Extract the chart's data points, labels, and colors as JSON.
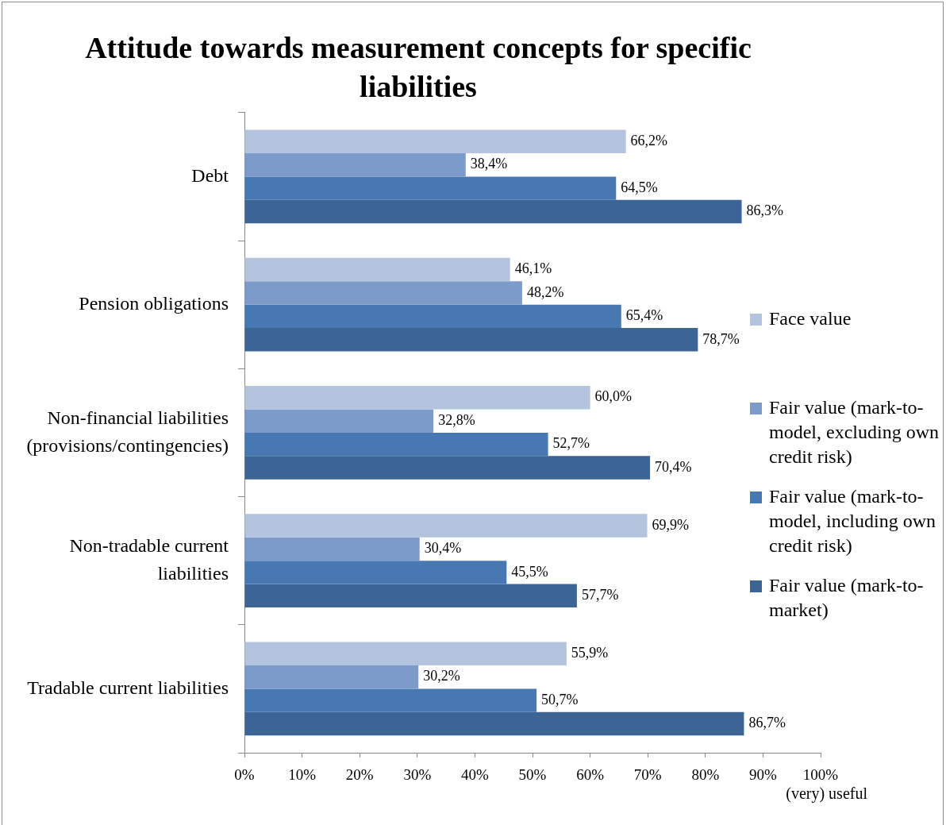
{
  "chart_data": {
    "type": "bar",
    "orientation": "horizontal",
    "title": "Attitude towards measurement concepts for specific liabilities",
    "categories": [
      "Debt",
      "Pension obligations",
      "Non-financial liabilities (provisions/contingencies)",
      "Non-tradable current liabilities",
      "Tradable current liabilities"
    ],
    "series": [
      {
        "name": "Face value",
        "color": "#b4c3de",
        "values": [
          66.2,
          46.1,
          60.0,
          69.9,
          55.9
        ],
        "value_labels": [
          "66,2%",
          "46,1%",
          "60,0%",
          "69,9%",
          "55,9%"
        ]
      },
      {
        "name": "Fair value (mark-to-model, excluding own credit risk)",
        "color": "#7d9bca",
        "values": [
          38.4,
          48.2,
          32.8,
          30.4,
          30.2
        ],
        "value_labels": [
          "38,4%",
          "48,2%",
          "32,8%",
          "30,4%",
          "30,2%"
        ]
      },
      {
        "name": "Fair value (mark-to-model, including own credit risk)",
        "color": "#4778b1",
        "values": [
          64.5,
          65.4,
          52.7,
          45.5,
          50.7
        ],
        "value_labels": [
          "64,5%",
          "65,4%",
          "52,7%",
          "45,5%",
          "50,7%"
        ]
      },
      {
        "name": "Fair value (mark-to-market)",
        "color": "#3c6494",
        "values": [
          86.3,
          78.7,
          70.4,
          57.7,
          86.7
        ],
        "value_labels": [
          "86,3%",
          "78,7%",
          "70,4%",
          "57,7%",
          "86,7%"
        ]
      }
    ],
    "xlabel": "(very) useful",
    "xlim": [
      0,
      100
    ],
    "xticks": [
      {
        "value": 0,
        "label": "0%"
      },
      {
        "value": 10,
        "label": "10%"
      },
      {
        "value": 20,
        "label": "20%"
      },
      {
        "value": 30,
        "label": "30%"
      },
      {
        "value": 40,
        "label": "40%"
      },
      {
        "value": 50,
        "label": "50%"
      },
      {
        "value": 60,
        "label": "60%"
      },
      {
        "value": 70,
        "label": "70%"
      },
      {
        "value": 80,
        "label": "80%"
      },
      {
        "value": 90,
        "label": "90%"
      },
      {
        "value": 100,
        "label": "100%"
      }
    ],
    "legend": "right"
  }
}
